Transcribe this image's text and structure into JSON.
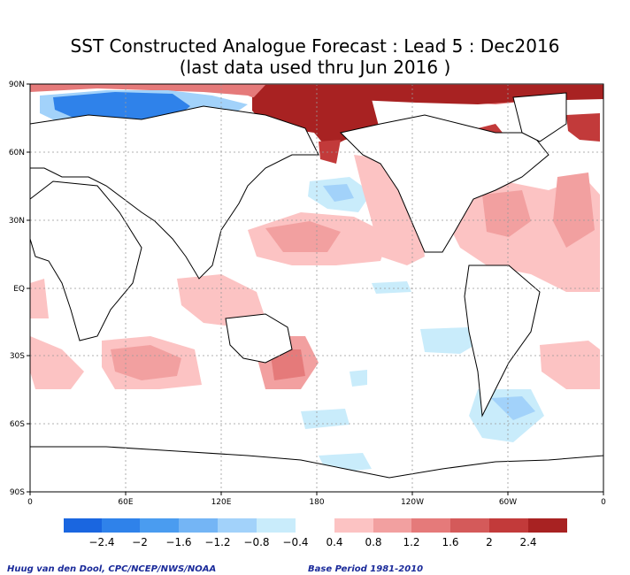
{
  "title": "SST Constructed Analogue Forecast : Lead 5 : Dec2016",
  "subtitle": "(last data used thru Jun 2016 )",
  "axes": {
    "lat_labels": [
      "90N",
      "60N",
      "30N",
      "EQ",
      "30S",
      "60S",
      "90S"
    ],
    "lon_labels": [
      "0",
      "60E",
      "120E",
      "180",
      "120W",
      "60W",
      "0"
    ]
  },
  "colorbar": {
    "neg_colors": [
      "#1a66e0",
      "#2f82ea",
      "#4a9cf0",
      "#74b5f5",
      "#a2d2fa",
      "#c9ecfb"
    ],
    "pos_colors": [
      "#fcc3c3",
      "#f2a0a0",
      "#e57a7a",
      "#d45a5a",
      "#c23a3a",
      "#a82222"
    ],
    "neg_labels": [
      "−2.4",
      "−2",
      "−1.6",
      "−1.2",
      "−0.8",
      "−0.4"
    ],
    "pos_labels": [
      "0.4",
      "0.8",
      "1.2",
      "1.6",
      "2",
      "2.4"
    ]
  },
  "credits": {
    "left": "Huug van den Dool, CPC/NCEP/NWS/NOAA",
    "right": "Base Period 1981-2010"
  }
}
